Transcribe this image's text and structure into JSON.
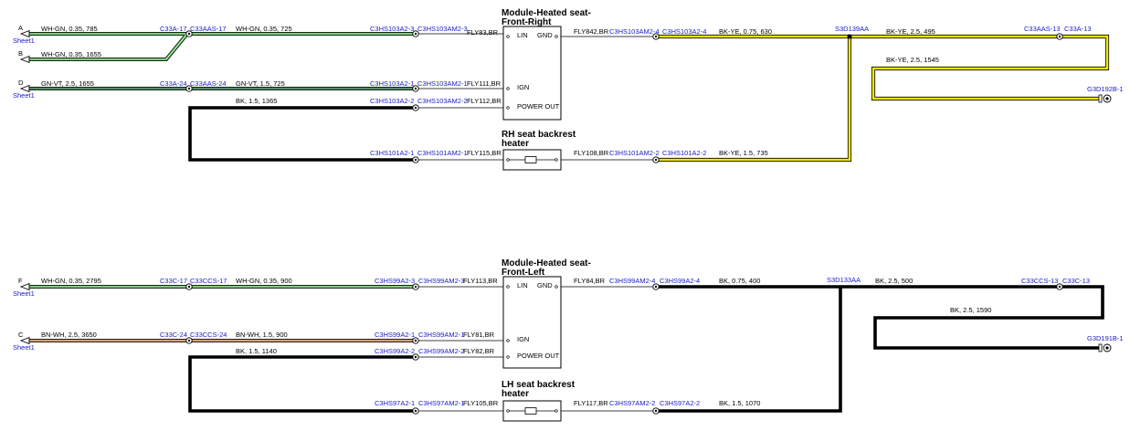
{
  "top": {
    "module": {
      "title1": "Module-Heated seat-",
      "title2": "Front-Right",
      "pin_lin": "LIN",
      "pin_gnd": "GND",
      "pin_ign": "IGN",
      "pin_power": "POWER OUT"
    },
    "heater": {
      "title1": "RH seat backrest",
      "title2": "heater"
    },
    "sheet_a": {
      "letter": "A",
      "sheet": "Sheet1"
    },
    "sheet_b": {
      "letter": "B"
    },
    "sheet_d": {
      "letter": "D",
      "sheet": "Sheet1"
    },
    "w_a": "WH-GN,  0.35,  785",
    "w_b": "WH-GN,  0.35,  1655",
    "w_d": "GN-VT,  2.5,  1655",
    "c33a17": "C33A-17",
    "c33aas17": "C33AAS-17",
    "c33a24": "C33A-24",
    "c33aas24": "C33AAS-24",
    "w_lin": "WH-GN,  0.35,  725",
    "w_ign": "GN-VT,  1.5,  725",
    "w_pwr": "BK,  1.5,  1365",
    "c_lin_a": "C3HS103A2-3",
    "c_lin_b": "C3HS103AM2-3",
    "fly_lin": "FLY83,BR",
    "c_ign_a": "C3HS103A2-1",
    "c_ign_b": "C3HS103AM2-1",
    "fly_ign": "FLY111,BR",
    "c_pwr_a": "C3HS103A2-2",
    "c_pwr_b": "C3HS103AM2-2",
    "fly_pwr": "FLY112,BR",
    "c_ht_a": "C3HS101A2-1",
    "c_ht_b": "C3HS101AM2-1",
    "fly_ht": "FLY115,BR",
    "fly_gnd": "FLY842,BR",
    "c_gnd_b": "C3HS103AM2-4",
    "c_gnd_a": "C3HS103A2-4",
    "w_gnd": "BK-YE,  0.75,  630",
    "fly_ht2": "FLY108,BR",
    "c_ht2_b": "C3HS101AM2-2",
    "c_ht2_a": "C3HS101A2-2",
    "w_ht2": "BK-YE,  1.5,  735",
    "splice": "S3D139AA",
    "w_s1": "BK-YE,  2.5,  495",
    "c33aas13": "C33AAS-13",
    "c33a13": "C33A-13",
    "w_s2": "BK-YE,  2.5,  1545",
    "ground": "G3D192B-1"
  },
  "bottom": {
    "module": {
      "title1": "Module-Heated seat-",
      "title2": "Front-Left",
      "pin_lin": "LIN",
      "pin_gnd": "GND",
      "pin_ign": "IGN",
      "pin_power": "POWER OUT"
    },
    "heater": {
      "title1": "LH seat backrest",
      "title2": "heater"
    },
    "sheet_f": {
      "letter": "F",
      "sheet": "Sheet1"
    },
    "sheet_c": {
      "letter": "C",
      "sheet": "Sheet1"
    },
    "w_f": "WH-GN,  0.35,  2795",
    "w_c": "BN-WH,  2.5,  3650",
    "c33c17": "C33C-17",
    "c33ccs17": "C33CCS-17",
    "c33c24": "C33C-24",
    "c33ccs24": "C33CCS-24",
    "w_lin": "WH-GN,  0.35,  900",
    "w_ign": "BN-WH,  1.5,  900",
    "w_pwr": "BK,  1.5,  1140",
    "c_lin_a": "C3HS99A2-3",
    "c_lin_b": "C3HS99AM2-3",
    "fly_lin": "FLY113,BR",
    "c_ign_a": "C3HS99A2-1",
    "c_ign_b": "C3HS99AM2-1",
    "fly_ign": "FLY81,BR",
    "c_pwr_a": "C3HS99A2-2",
    "c_pwr_b": "C3HS99AM2-2",
    "fly_pwr": "FLY82,BR",
    "c_ht_a": "C3HS97A2-1",
    "c_ht_b": "C3HS97AM2-1",
    "fly_ht": "FLY105,BR",
    "fly_gnd": "FLY84,BR",
    "c_gnd_b": "C3HS99AM2-4",
    "c_gnd_a": "C3HS99A2-4",
    "w_gnd": "BK,  0.75,  400",
    "fly_ht2": "FLY117,BR",
    "c_ht2_b": "C3HS97AM2-2",
    "c_ht2_a": "C3HS97A2-2",
    "w_ht2": "BK,  1.5,  1070",
    "splice": "S3D133AA",
    "w_s1": "BK,  2.5,  500",
    "c33ccs13": "C33CCS-13",
    "c33c13": "C33C-13",
    "w_s2": "BK,  2.5,  1590",
    "ground": "G3D191B-1"
  },
  "colors": {
    "green": "#3caa3c",
    "yellow": "#f2e600",
    "violet": "#8c50c8",
    "brown": "#b46e32",
    "black": "#000000"
  }
}
